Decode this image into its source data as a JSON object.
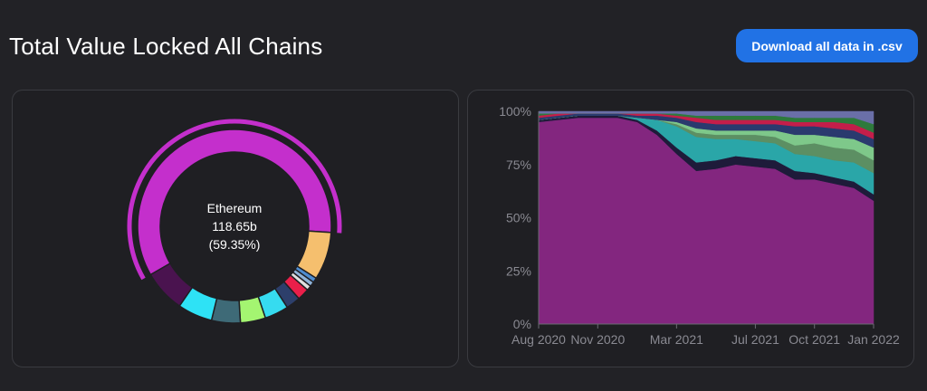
{
  "header": {
    "title": "Total Value Locked All Chains",
    "download_label": "Download all data in .csv",
    "button_color": "#2172e5"
  },
  "chart_data": [
    {
      "type": "pie",
      "variant": "donut",
      "active": {
        "name": "Ethereum",
        "value_label": "118.65b",
        "percent_label": "(59.35%)"
      },
      "slices": [
        {
          "name": "Ethereum",
          "percent": 59.35,
          "color": "#c42fcc"
        },
        {
          "name": "",
          "percent": 8.0,
          "color": "#f5bf6e"
        },
        {
          "name": "",
          "percent": 0.8,
          "color": "#4e8ccf"
        },
        {
          "name": "",
          "percent": 0.8,
          "color": "#8fb3d9"
        },
        {
          "name": "",
          "percent": 0.8,
          "color": "#e0e0e0"
        },
        {
          "name": "",
          "percent": 2.0,
          "color": "#ea1f4a"
        },
        {
          "name": "",
          "percent": 2.4,
          "color": "#2d3f6b"
        },
        {
          "name": "",
          "percent": 4.0,
          "color": "#36dbf0"
        },
        {
          "name": "",
          "percent": 4.2,
          "color": "#a4f571"
        },
        {
          "name": "",
          "percent": 4.8,
          "color": "#3e6a77"
        },
        {
          "name": "",
          "percent": 5.8,
          "color": "#2ee2f5"
        },
        {
          "name": "",
          "percent": 7.05,
          "color": "#4a134f"
        }
      ]
    },
    {
      "type": "area",
      "stacked": true,
      "normalized": true,
      "x_ticks": [
        "Aug 2020",
        "Nov 2020",
        "Mar 2021",
        "Jul 2021",
        "Oct 2021",
        "Jan 2022"
      ],
      "y_ticks": [
        "100%",
        "75%",
        "50%",
        "25%",
        "0%"
      ],
      "ylim": [
        0,
        100
      ],
      "x": [
        "Aug 2020",
        "Sep 2020",
        "Oct 2020",
        "Nov 2020",
        "Dec 2020",
        "Jan 2021",
        "Feb 2021",
        "Mar 2021",
        "Apr 2021",
        "May 2021",
        "Jun 2021",
        "Jul 2021",
        "Aug 2021",
        "Sep 2021",
        "Oct 2021",
        "Nov 2021",
        "Dec 2021",
        "Jan 2022"
      ],
      "series": [
        {
          "name": "Ethereum",
          "color": "#83267f",
          "values": [
            95,
            96,
            97,
            97,
            97,
            95,
            89,
            80,
            72,
            73,
            75,
            74,
            73,
            68,
            68,
            66,
            64,
            58
          ]
        },
        {
          "name": "",
          "color": "#1e1b3a",
          "values": [
            1,
            1,
            1,
            1,
            1,
            1,
            2,
            3,
            4,
            4,
            4,
            4,
            4,
            4,
            3,
            3,
            3,
            3
          ]
        },
        {
          "name": "",
          "color": "#2aa6a8",
          "values": [
            0,
            0,
            0,
            0,
            0,
            1,
            5,
            10,
            12,
            10,
            8,
            8,
            8,
            8,
            8,
            8,
            9,
            10
          ]
        },
        {
          "name": "",
          "color": "#5c8f63",
          "values": [
            0,
            0,
            0,
            0,
            0,
            0,
            0,
            1,
            2,
            2,
            2,
            3,
            3,
            4,
            6,
            6,
            6,
            6
          ]
        },
        {
          "name": "",
          "color": "#7ec88a",
          "values": [
            0,
            0,
            0,
            0,
            0,
            0,
            0,
            1,
            2,
            2,
            2,
            2,
            3,
            5,
            4,
            5,
            5,
            6
          ]
        },
        {
          "name": "",
          "color": "#2a3a6e",
          "values": [
            1,
            1,
            1,
            1,
            1,
            1,
            2,
            2,
            3,
            3,
            3,
            3,
            3,
            4,
            4,
            4,
            4,
            4
          ]
        },
        {
          "name": "",
          "color": "#c41e4a",
          "values": [
            1,
            1,
            0,
            0,
            0,
            1,
            1,
            1,
            2,
            2,
            2,
            2,
            2,
            2,
            2,
            3,
            3,
            3
          ]
        },
        {
          "name": "",
          "color": "#2e7a3c",
          "values": [
            1,
            0,
            0,
            0,
            0,
            0,
            0,
            1,
            1,
            2,
            2,
            2,
            2,
            2,
            2,
            2,
            3,
            4
          ]
        },
        {
          "name": "",
          "color": "#6a6fa8",
          "values": [
            1,
            1,
            1,
            1,
            1,
            1,
            1,
            1,
            2,
            2,
            2,
            2,
            2,
            3,
            3,
            3,
            3,
            6
          ]
        }
      ]
    }
  ]
}
